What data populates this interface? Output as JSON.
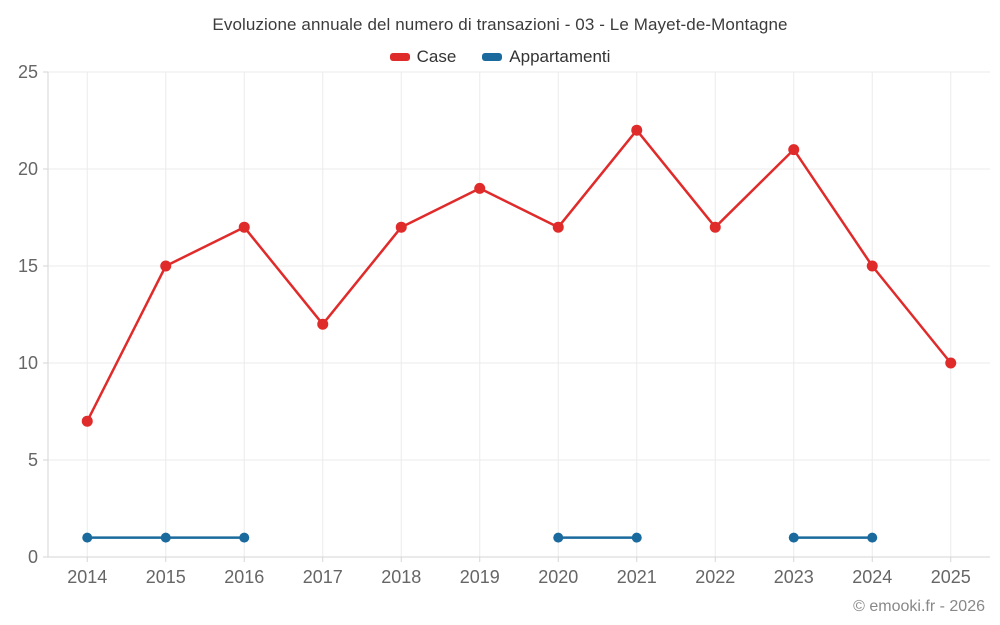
{
  "title": "Evoluzione annuale del numero di transazioni - 03 - Le Mayet-de-Montagne",
  "footer": {
    "credit": "© emooki.fr - 2026"
  },
  "colors": {
    "case_red": "#e02b2b",
    "appartamenti_blue": "#1a6a9e",
    "grid": "#ebebeb",
    "axis": "#d6d6d6",
    "tick_label": "#666666"
  },
  "chart_data": {
    "type": "line",
    "x": [
      2014,
      2015,
      2016,
      2017,
      2018,
      2019,
      2020,
      2021,
      2022,
      2023,
      2024,
      2025
    ],
    "series": [
      {
        "name": "Case",
        "color": "#e02b2b",
        "values": [
          7,
          15,
          17,
          12,
          17,
          19,
          17,
          22,
          17,
          21,
          15,
          10
        ]
      },
      {
        "name": "Appartamenti",
        "color": "#1a6a9e",
        "values": [
          1,
          1,
          1,
          null,
          null,
          null,
          1,
          1,
          null,
          1,
          1,
          null
        ]
      }
    ],
    "title": "Evoluzione annuale del numero di transazioni - 03 - Le Mayet-de-Montagne",
    "xlabel": "",
    "ylabel": "",
    "ylim": [
      0,
      25
    ],
    "yticks": [
      0,
      5,
      10,
      15,
      20,
      25
    ],
    "grid": true,
    "legend_position": "top"
  }
}
